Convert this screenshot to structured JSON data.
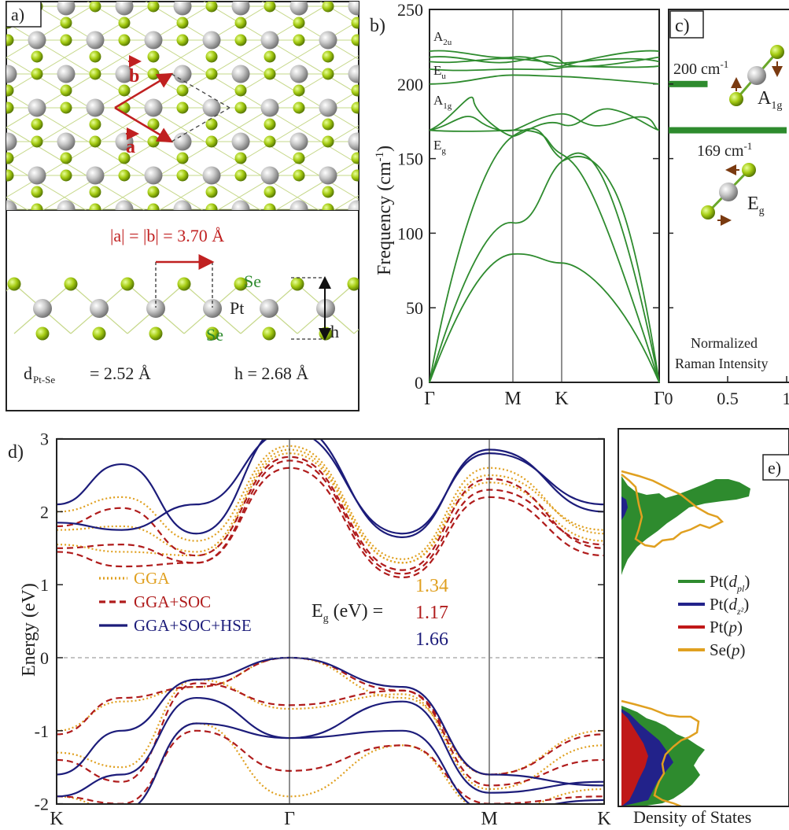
{
  "panels": {
    "a": "a)",
    "b": "b)",
    "c": "c)",
    "d": "d)",
    "e": "e)"
  },
  "structure": {
    "vec_b": "b",
    "vec_a": "a",
    "lattice_eq": "|a| = |b| = 3.70 Å",
    "se_top": "Se",
    "se_bottom": "Se",
    "pt": "Pt",
    "h_label": "h",
    "bond_prefix": "d",
    "bond_sub": "Pt-Se",
    "bond_value": "= 2.52 Å",
    "height": "h = 2.68 Å"
  },
  "phonon": {
    "ylabel_main": "Frequency (cm",
    "ylabel_sup": "-1",
    "ylabel_end": ")",
    "yticks": [
      "0",
      "50",
      "100",
      "150",
      "200",
      "250"
    ],
    "xticks": [
      "Γ",
      "M",
      "K",
      "Γ"
    ],
    "modes": [
      {
        "main": "A",
        "sub": "2u"
      },
      {
        "main": "E",
        "sub": "u"
      },
      {
        "main": "A",
        "sub": "1g"
      },
      {
        "main": "E",
        "sub": "g"
      }
    ],
    "color": "#2e8b2e"
  },
  "raman": {
    "peak1": "200 cm",
    "peak1_sup": "-1",
    "peak2": "169 cm",
    "peak2_sup": "-1",
    "mode1_main": "A",
    "mode1_sub": "1g",
    "mode2_main": "E",
    "mode2_sub": "g",
    "xlabel1": "Normalized",
    "xlabel2": "Raman Intensity",
    "xticks": [
      "0",
      "0.5",
      "1"
    ],
    "bars": [
      {
        "freq_cm": 200,
        "intensity": 0.33
      },
      {
        "freq_cm": 169,
        "intensity": 1.0
      }
    ]
  },
  "bands": {
    "ylabel": "Energy (eV)",
    "yticks": [
      "-2",
      "-1",
      "0",
      "1",
      "2",
      "3"
    ],
    "xticks": [
      "K",
      "Γ",
      "M",
      "K"
    ],
    "legend": [
      {
        "name": "GGA",
        "color": "#e0a020"
      },
      {
        "name": "GGA+SOC",
        "color": "#b01c1c"
      },
      {
        "name": "GGA+SOC+HSE",
        "color": "#1c1c7a"
      }
    ],
    "gap_label_main": "E",
    "gap_label_sub": "g",
    "gap_label_end": " (eV) =",
    "gaps": [
      "1.34",
      "1.17",
      "1.66"
    ]
  },
  "dos": {
    "xlabel": "Density of States",
    "legend": [
      {
        "pre": "Pt(",
        "it": "d",
        "sub": "pl",
        "post": ")",
        "color": "#2e8b2e"
      },
      {
        "pre": "Pt(",
        "it": "d",
        "sub": "z²",
        "post": ")",
        "color": "#22228a"
      },
      {
        "pre": "Pt(",
        "it": "p",
        "sub": "",
        "post": ")",
        "color": "#c01818"
      },
      {
        "pre": "Se(",
        "it": "p",
        "sub": "",
        "post": ")",
        "color": "#e0a020"
      }
    ]
  },
  "chart_data": [
    {
      "type": "line",
      "title": "",
      "xlabel": "",
      "ylabel": "Frequency (cm-1)",
      "ylim": [
        0,
        250
      ],
      "x_ticks": [
        "Γ",
        "M",
        "K",
        "Γ"
      ],
      "series": [
        {
          "name": "A2u",
          "values": [
            222,
            215,
            212,
            222
          ]
        },
        {
          "name": "Eu",
          "values": [
            215,
            213,
            211,
            218
          ]
        },
        {
          "name": "A1g",
          "values": [
            200,
            205,
            204,
            200
          ]
        },
        {
          "name": "Eg",
          "values": [
            169,
            168,
            175,
            169
          ]
        },
        {
          "values": [
            0,
            105,
            148,
            0
          ]
        },
        {
          "values": [
            0,
            85,
            80,
            0
          ]
        }
      ]
    },
    {
      "type": "bar",
      "xlabel": "Normalized Raman Intensity",
      "categories": [
        "200 cm-1",
        "169 cm-1"
      ],
      "values": [
        0.33,
        1.0
      ],
      "xlim": [
        0,
        1
      ]
    },
    {
      "type": "line",
      "xlabel": "",
      "ylabel": "Energy (eV)",
      "ylim": [
        -2,
        3
      ],
      "x_ticks": [
        "K",
        "Γ",
        "M",
        "K"
      ],
      "series": [
        {
          "name": "GGA",
          "gap": 1.34
        },
        {
          "name": "GGA+SOC",
          "gap": 1.17
        },
        {
          "name": "GGA+SOC+HSE",
          "gap": 1.66
        }
      ]
    }
  ]
}
